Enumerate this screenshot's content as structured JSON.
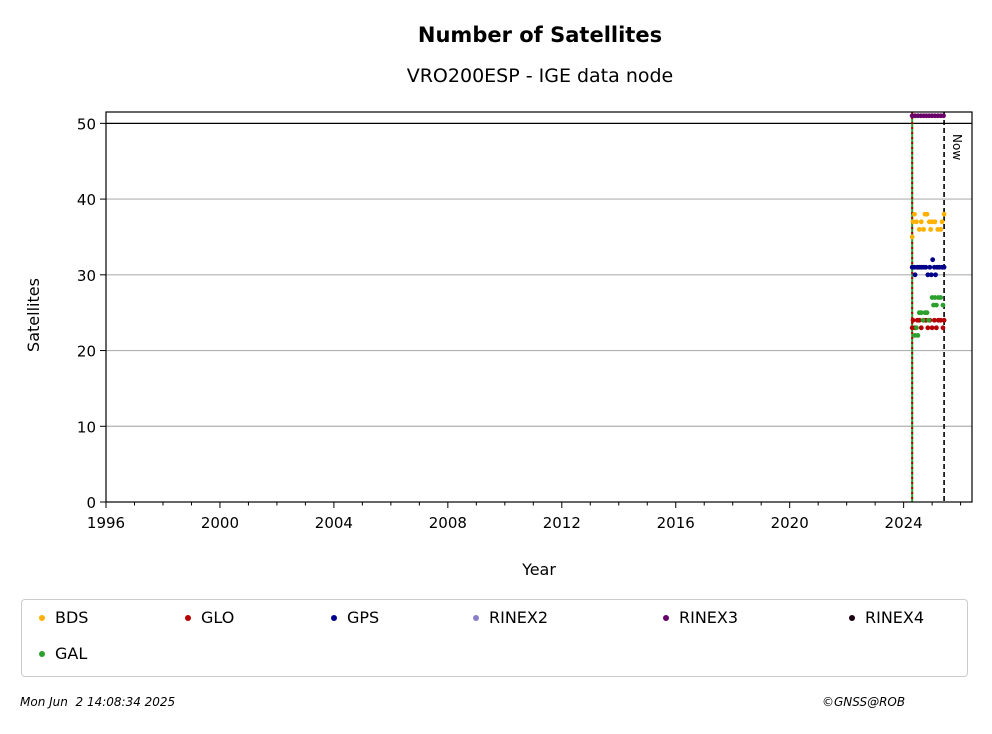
{
  "chart_data": {
    "type": "scatter",
    "title": "Number of Satellites",
    "subtitle": "VRO200ESP - IGE data node",
    "xlabel": "Year",
    "ylabel": "Satellites",
    "xlim": [
      1996,
      2026.4
    ],
    "ylim": [
      0,
      51.5
    ],
    "xticks": [
      "1996",
      "2000",
      "2004",
      "2008",
      "2012",
      "2016",
      "2020",
      "2024"
    ],
    "xtick_values": [
      1996,
      2000,
      2004,
      2008,
      2012,
      2016,
      2020,
      2024
    ],
    "yticks": [
      "0",
      "10",
      "20",
      "30",
      "40",
      "50"
    ],
    "ytick_values": [
      0,
      10,
      20,
      30,
      40,
      50
    ],
    "grid": "horizontal",
    "hline": 50,
    "start_line_x": 2024.3,
    "now_line_x": 2025.42,
    "now_label": "Now",
    "series": [
      {
        "name": "BDS",
        "color": "#ffb000",
        "points": [
          [
            2024.3,
            35
          ],
          [
            2024.33,
            37
          ],
          [
            2024.38,
            38
          ],
          [
            2024.45,
            37
          ],
          [
            2024.55,
            36
          ],
          [
            2024.62,
            37
          ],
          [
            2024.7,
            36
          ],
          [
            2024.75,
            38
          ],
          [
            2024.82,
            38
          ],
          [
            2024.9,
            37
          ],
          [
            2024.95,
            36
          ],
          [
            2025.0,
            37
          ],
          [
            2025.1,
            37
          ],
          [
            2025.2,
            36
          ],
          [
            2025.3,
            36
          ],
          [
            2025.35,
            37
          ],
          [
            2025.42,
            38
          ]
        ]
      },
      {
        "name": "GLO",
        "color": "#b40000",
        "points": [
          [
            2024.3,
            23
          ],
          [
            2024.33,
            24
          ],
          [
            2024.4,
            23
          ],
          [
            2024.48,
            24
          ],
          [
            2024.55,
            24
          ],
          [
            2024.62,
            23
          ],
          [
            2024.7,
            24
          ],
          [
            2024.78,
            24
          ],
          [
            2024.85,
            23
          ],
          [
            2024.92,
            24
          ],
          [
            2025.0,
            23
          ],
          [
            2025.08,
            24
          ],
          [
            2025.15,
            23
          ],
          [
            2025.22,
            24
          ],
          [
            2025.3,
            24
          ],
          [
            2025.38,
            23
          ],
          [
            2025.42,
            24
          ]
        ]
      },
      {
        "name": "GPS",
        "color": "#00008b",
        "points": [
          [
            2024.3,
            31
          ],
          [
            2024.38,
            31
          ],
          [
            2024.4,
            30
          ],
          [
            2024.48,
            31
          ],
          [
            2024.55,
            31
          ],
          [
            2024.62,
            31
          ],
          [
            2024.7,
            31
          ],
          [
            2024.78,
            31
          ],
          [
            2024.85,
            30
          ],
          [
            2024.92,
            31
          ],
          [
            2024.97,
            30
          ],
          [
            2025.02,
            32
          ],
          [
            2025.08,
            31
          ],
          [
            2025.12,
            30
          ],
          [
            2025.18,
            31
          ],
          [
            2025.25,
            31
          ],
          [
            2025.35,
            31
          ],
          [
            2025.42,
            31
          ]
        ]
      },
      {
        "name": "RINEX2",
        "color": "#8a7fc7",
        "points": []
      },
      {
        "name": "RINEX3",
        "color": "#6a006a",
        "points": [
          [
            2024.3,
            51
          ],
          [
            2024.4,
            51
          ],
          [
            2024.5,
            51
          ],
          [
            2024.6,
            51
          ],
          [
            2024.7,
            51
          ],
          [
            2024.8,
            51
          ],
          [
            2024.9,
            51
          ],
          [
            2025.0,
            51
          ],
          [
            2025.1,
            51
          ],
          [
            2025.2,
            51
          ],
          [
            2025.3,
            51
          ],
          [
            2025.4,
            51
          ]
        ]
      },
      {
        "name": "RINEX4",
        "color": "#1a0010",
        "points": []
      },
      {
        "name": "GAL",
        "color": "#2ca02c",
        "points": [
          [
            2024.4,
            22
          ],
          [
            2024.45,
            23
          ],
          [
            2024.5,
            22
          ],
          [
            2024.55,
            25
          ],
          [
            2024.62,
            25
          ],
          [
            2024.68,
            24
          ],
          [
            2024.75,
            25
          ],
          [
            2024.82,
            25
          ],
          [
            2024.88,
            24
          ],
          [
            2025.0,
            27
          ],
          [
            2025.05,
            26
          ],
          [
            2025.1,
            27
          ],
          [
            2025.15,
            26
          ],
          [
            2025.22,
            27
          ],
          [
            2025.3,
            27
          ],
          [
            2025.38,
            26
          ]
        ]
      }
    ]
  },
  "footer": {
    "timestamp": "Mon Jun  2 14:08:34 2025",
    "copyright": "©GNSS@ROB"
  }
}
